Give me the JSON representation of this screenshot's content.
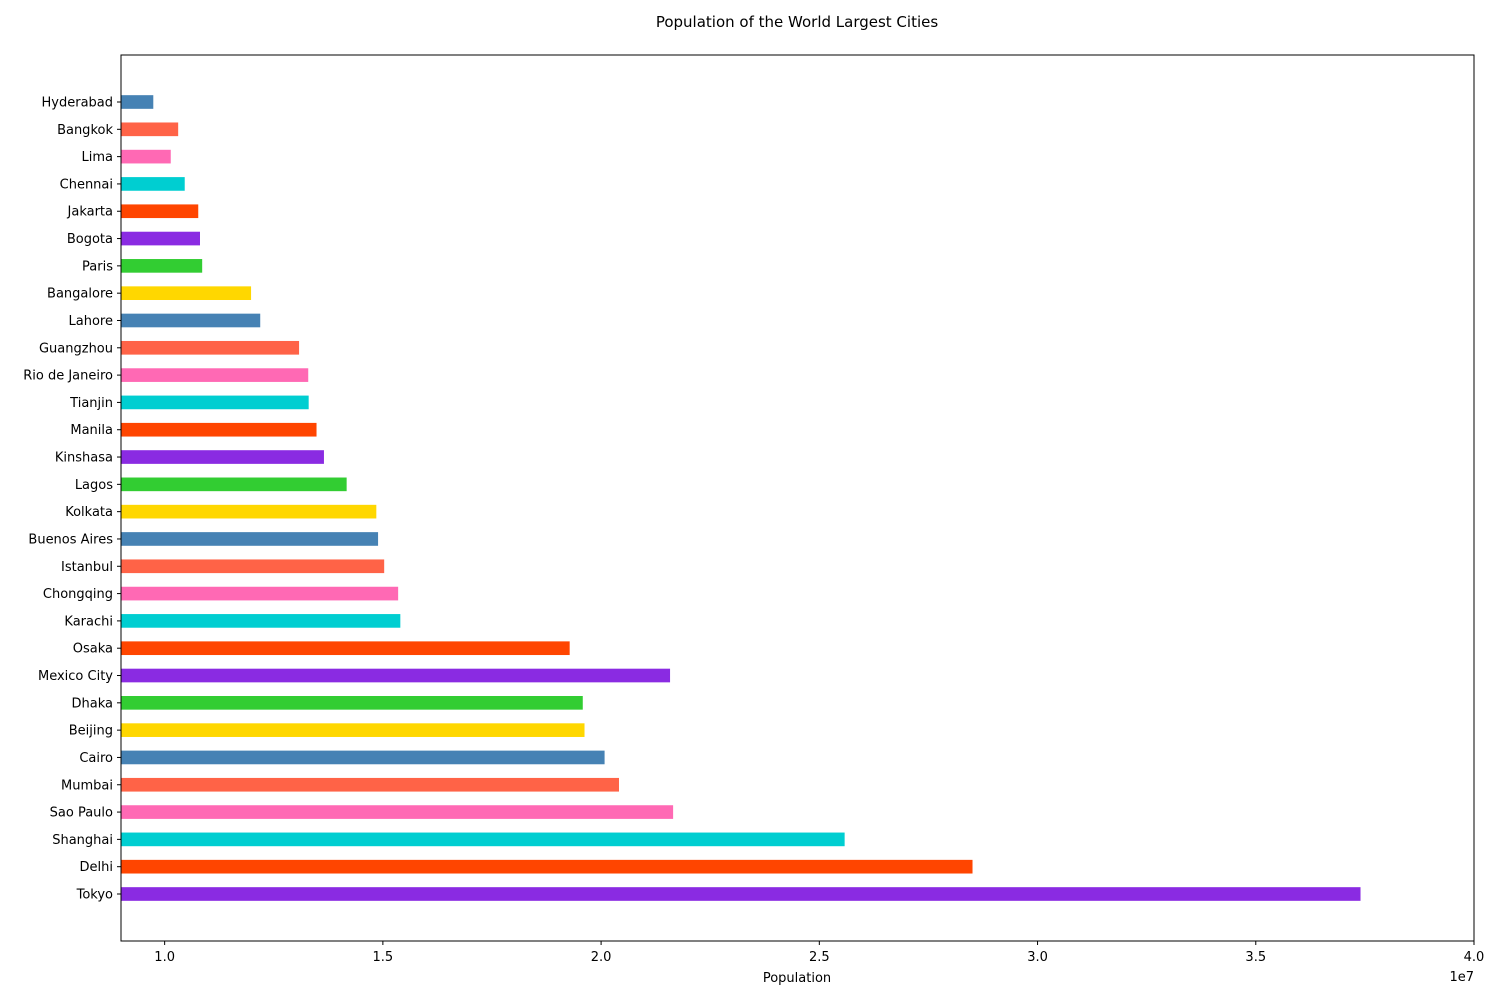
{
  "chart_data": {
    "type": "bar",
    "orientation": "horizontal",
    "title": "Population of the World\u0019\u0019 Largest Cities",
    "xlabel": "Population",
    "ylabel": "",
    "x_offset_label": "1e7",
    "xlim": [
      9000000,
      40000000
    ],
    "x_ticks": [
      10000000,
      15000000,
      20000000,
      25000000,
      30000000,
      35000000,
      40000000
    ],
    "x_tick_labels": [
      "1.0",
      "1.5",
      "2.0",
      "2.5",
      "3.0",
      "3.5",
      "4.0"
    ],
    "grid": false,
    "legend": "none",
    "categories": [
      "Tokyo",
      "Delhi",
      "Shanghai",
      "Sao Paulo",
      "Mumbai",
      "Cairo",
      "Beijing",
      "Dhaka",
      "Mexico City",
      "Osaka",
      "Karachi",
      "Chongqing",
      "Istanbul",
      "Buenos Aires",
      "Kolkata",
      "Lagos",
      "Kinshasa",
      "Manila",
      "Tianjin",
      "Rio de Janeiro",
      "Guangzhou",
      "Lahore",
      "Bangalore",
      "Paris",
      "Bogota",
      "Jakarta",
      "Chennai",
      "Lima",
      "Bangkok",
      "Hyderabad"
    ],
    "values": [
      37400000,
      28510000,
      25580000,
      21650000,
      20410000,
      20080000,
      19620000,
      19580000,
      21580000,
      19280000,
      15400000,
      15350000,
      15030000,
      14890000,
      14850000,
      14170000,
      13650000,
      13480000,
      13300000,
      13290000,
      13080000,
      12190000,
      11980000,
      10860000,
      10810000,
      10770000,
      10460000,
      10140000,
      10310000,
      9740000
    ],
    "colors": [
      "#8a2be2",
      "#ff4500",
      "#00ced1",
      "#ff69b4",
      "#ff6347",
      "#4682b4",
      "#ffd700",
      "#32cd32",
      "#8a2be2",
      "#ff4500",
      "#00ced1",
      "#ff69b4",
      "#ff6347",
      "#4682b4",
      "#ffd700",
      "#32cd32",
      "#8a2be2",
      "#ff4500",
      "#00ced1",
      "#ff69b4",
      "#ff6347",
      "#4682b4",
      "#ffd700",
      "#32cd32",
      "#8a2be2",
      "#ff4500",
      "#00ced1",
      "#ff69b4",
      "#ff6347",
      "#4682b4"
    ]
  }
}
